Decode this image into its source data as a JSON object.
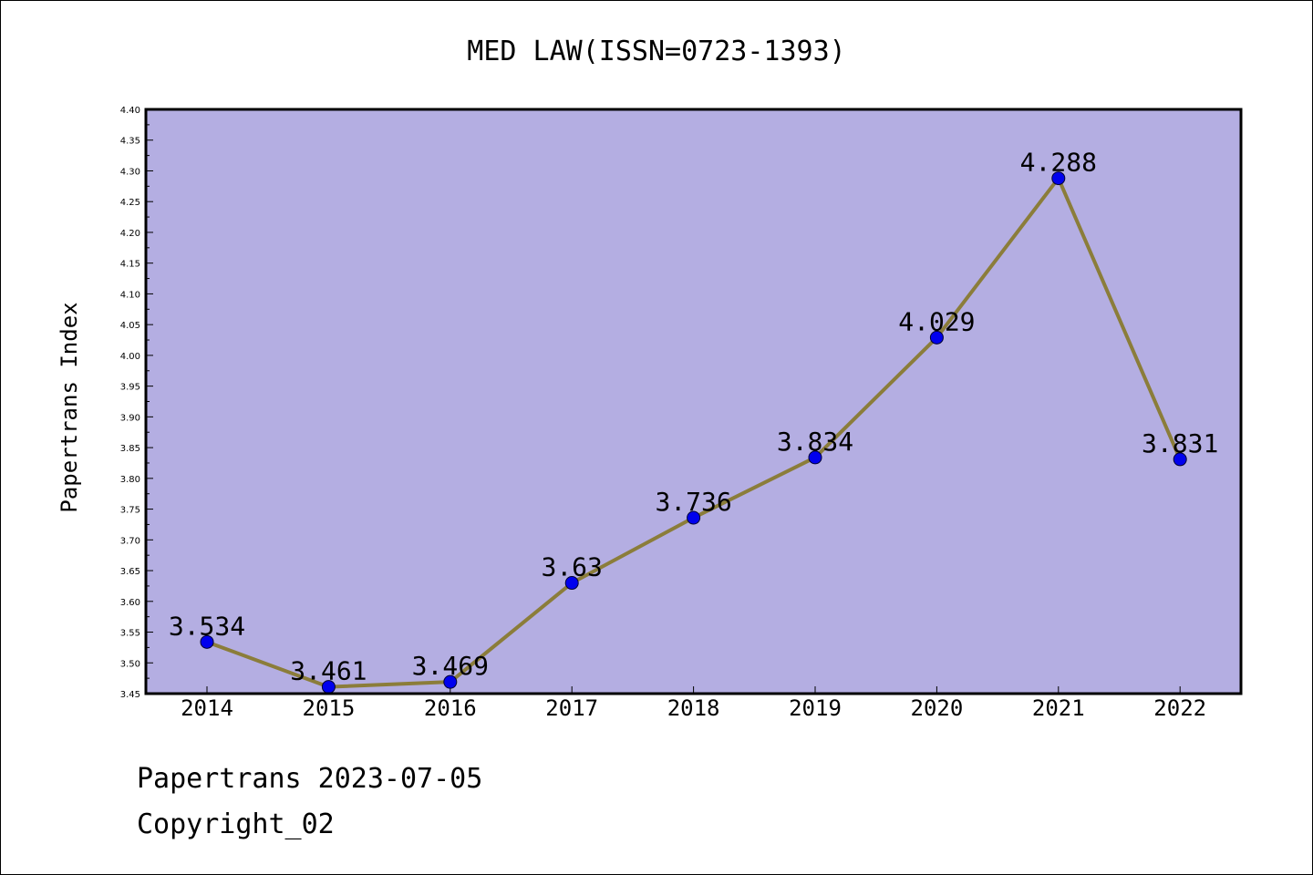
{
  "chart_data": {
    "type": "line",
    "title": "MED LAW(ISSN=0723-1393)",
    "xlabel": "",
    "ylabel": "Papertrans Index",
    "categories": [
      "2014",
      "2015",
      "2016",
      "2017",
      "2018",
      "2019",
      "2020",
      "2021",
      "2022"
    ],
    "values": [
      3.534,
      3.461,
      3.469,
      3.63,
      3.736,
      3.834,
      4.029,
      4.288,
      3.831
    ],
    "data_labels": [
      "3.534",
      "3.461",
      "3.469",
      "3.63",
      "3.736",
      "3.834",
      "4.029",
      "4.288",
      "3.831"
    ],
    "ylim": [
      3.45,
      4.4
    ],
    "yticks": [
      "3.45",
      "3.50",
      "3.55",
      "3.60",
      "3.65",
      "3.70",
      "3.75",
      "3.80",
      "3.85",
      "3.90",
      "3.95",
      "4.00",
      "4.05",
      "4.10",
      "4.15",
      "4.20",
      "4.25",
      "4.30",
      "4.35",
      "4.40"
    ],
    "grid": false,
    "colors": {
      "plot_background": "#b4aee2",
      "line": "#8b7d3a",
      "marker": "#0000ee"
    }
  },
  "footer": {
    "line1": "Papertrans 2023-07-05",
    "line2": "Copyright_02"
  }
}
